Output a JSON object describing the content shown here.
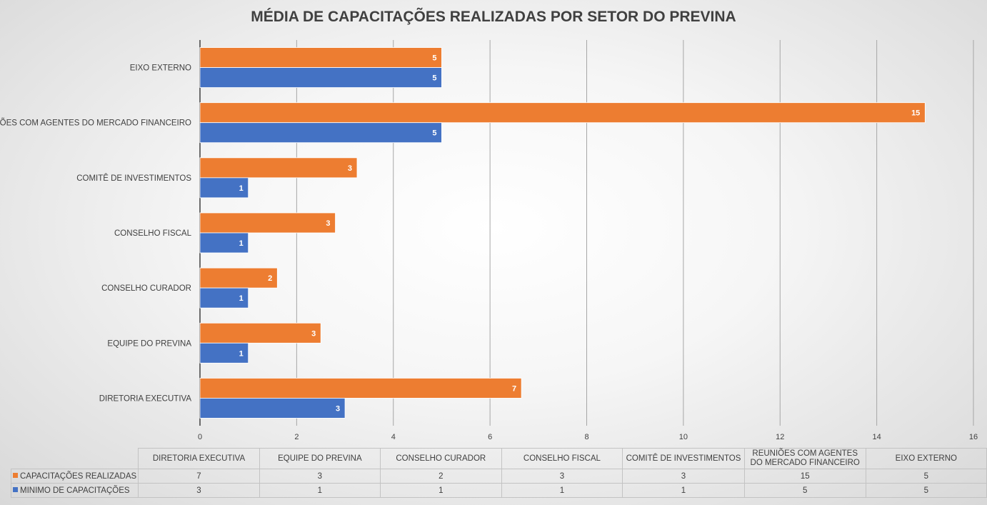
{
  "chart_data": {
    "type": "bar",
    "orientation": "horizontal",
    "title": "MÉDIA DE CAPACITAÇÕES REALIZADAS POR SETOR DO PREVINA",
    "categories": [
      "DIRETORIA EXECUTIVA",
      "EQUIPE DO PREVINA",
      "CONSELHO CURADOR",
      "CONSELHO FISCAL",
      "COMITÊ DE INVESTIMENTOS",
      "REUNIÕES COM AGENTES DO MERCADO FINANCEIRO",
      "EIXO EXTERNO"
    ],
    "series": [
      {
        "name": "CAPACITAÇÕES REALIZADAS",
        "color": "#ED7D31",
        "values": [
          6.65,
          2.5,
          1.6,
          2.8,
          3.25,
          15,
          5
        ],
        "labels": [
          "7",
          "3",
          "2",
          "3",
          "3",
          "15",
          "5"
        ]
      },
      {
        "name": "MINIMO DE CAPACITAÇÕES",
        "color": "#4472C4",
        "values": [
          3,
          1,
          1,
          1,
          1,
          5,
          5
        ],
        "labels": [
          "3",
          "1",
          "1",
          "1",
          "1",
          "5",
          "5"
        ]
      }
    ],
    "xlim": [
      0,
      16
    ],
    "xticks": [
      "0",
      "2",
      "4",
      "6",
      "8",
      "10",
      "12",
      "14",
      "16"
    ],
    "grid": true,
    "legend": "data-table",
    "table_headers": [
      "DIRETORIA EXECUTIVA",
      "EQUIPE DO PREVINA",
      "CONSELHO CURADOR",
      "CONSELHO FISCAL",
      "COMITÊ DE INVESTIMENTOS",
      "REUNIÕES COM AGENTES DO MERCADO FINANCEIRO",
      "EIXO EXTERNO"
    ]
  }
}
